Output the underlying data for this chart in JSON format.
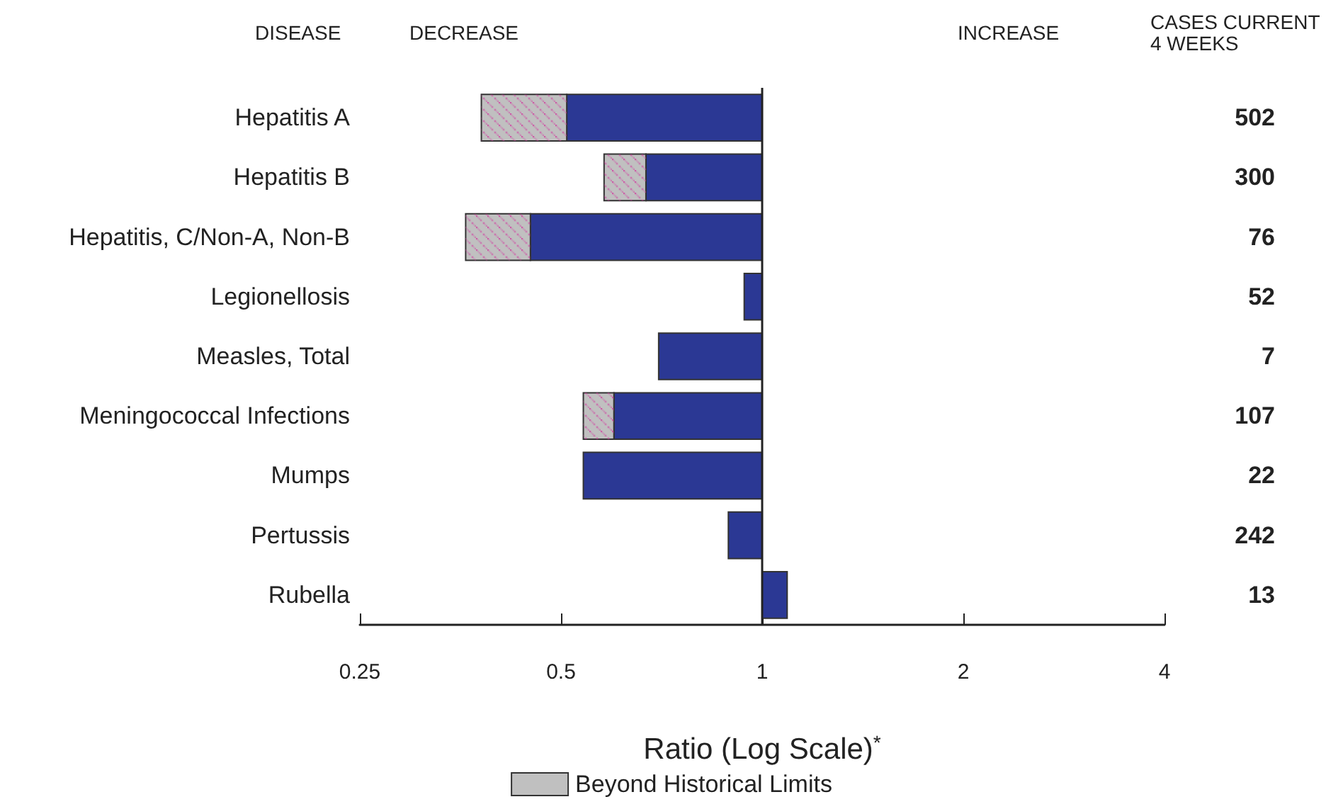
{
  "chart_data": {
    "type": "bar",
    "orientation": "horizontal",
    "log": "x",
    "ylabel": "DISEASE",
    "y2label": "CASES CURRENT 4 WEEKS",
    "xlabel": "Ratio (Log Scale)$^{*}$",
    "annotations": [
      "DECREASE",
      "INCREASE"
    ],
    "categories": [
      "Hepatitis A",
      "Hepatitis B",
      "Hepatitis, C/Non-A, Non-B",
      "Legionellosis",
      "Measles, Total",
      "Meningococcal Infections",
      "Mumps",
      "Pertussis",
      "Rubella"
    ],
    "y2_categories": [
      "502",
      "300",
      "76",
      "52",
      "7",
      "107",
      "22",
      "242",
      "13"
    ],
    "series": [
      {
        "color": "#2b3894",
        "base": [
          1,
          1,
          1,
          1,
          1,
          1,
          1,
          1,
          1
        ],
        "values": [
          -0.49,
          -0.33,
          -0.55,
          -0.06,
          -0.3,
          -0.4,
          -0.46,
          -0.11,
          0.09
        ]
      },
      {
        "name": "Beyond Historical Limits",
        "color": "#c0c0c0",
        "base": [
          0.51,
          0.67,
          0.45,
          null,
          null,
          0.6,
          null,
          null,
          null
        ],
        "values": [
          -0.13,
          -0.09,
          -0.09,
          null,
          null,
          -0.06,
          null,
          null,
          null
        ]
      }
    ],
    "xlim": [
      0.25,
      4
    ],
    "xticks": [
      0.25,
      0.5,
      1,
      2,
      4
    ],
    "ref_lines": [
      {
        "axis": "x",
        "value": 1
      }
    ],
    "grid": false,
    "legend": "bottom"
  }
}
